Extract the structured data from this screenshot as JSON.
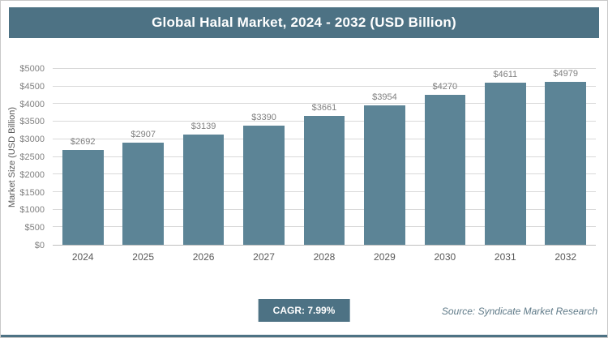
{
  "title": "Global Halal Market, 2024 - 2032 (USD Billion)",
  "footer": {
    "cagr_label": "CAGR: 7.99%",
    "source_label": "Source: Syndicate Market Research"
  },
  "colors": {
    "header_bg": "#4d7284",
    "bar_fill": "#5c8496",
    "gridline": "#d9d9d9",
    "axis_line": "#bfbfbf",
    "tick_text": "#808080",
    "badge_bg": "#4d7284"
  },
  "chart_data": {
    "type": "bar",
    "title": "Global Halal Market, 2024 - 2032 (USD Billion)",
    "categories": [
      "2024",
      "2025",
      "2026",
      "2027",
      "2028",
      "2029",
      "2030",
      "2031",
      "2032"
    ],
    "values": [
      2692,
      2907,
      3139,
      3390,
      3661,
      3954,
      4270,
      4611,
      4979
    ],
    "value_labels": [
      "$2692",
      "$2907",
      "$3139",
      "$3390",
      "$3661",
      "$3954",
      "$4270",
      "$4611",
      "$4979"
    ],
    "xlabel": "",
    "ylabel": "Market Size (USD Billion)",
    "ylim": [
      0,
      5000
    ],
    "ytick_step": 500,
    "yticks": [
      "$0",
      "$500",
      "$1000",
      "$1500",
      "$2000",
      "$2500",
      "$3000",
      "$3500",
      "$4000",
      "$4500",
      "$5000"
    ],
    "grid": true,
    "legend": false,
    "annotations": [
      "CAGR: 7.99%",
      "Source: Syndicate Market Research"
    ]
  }
}
